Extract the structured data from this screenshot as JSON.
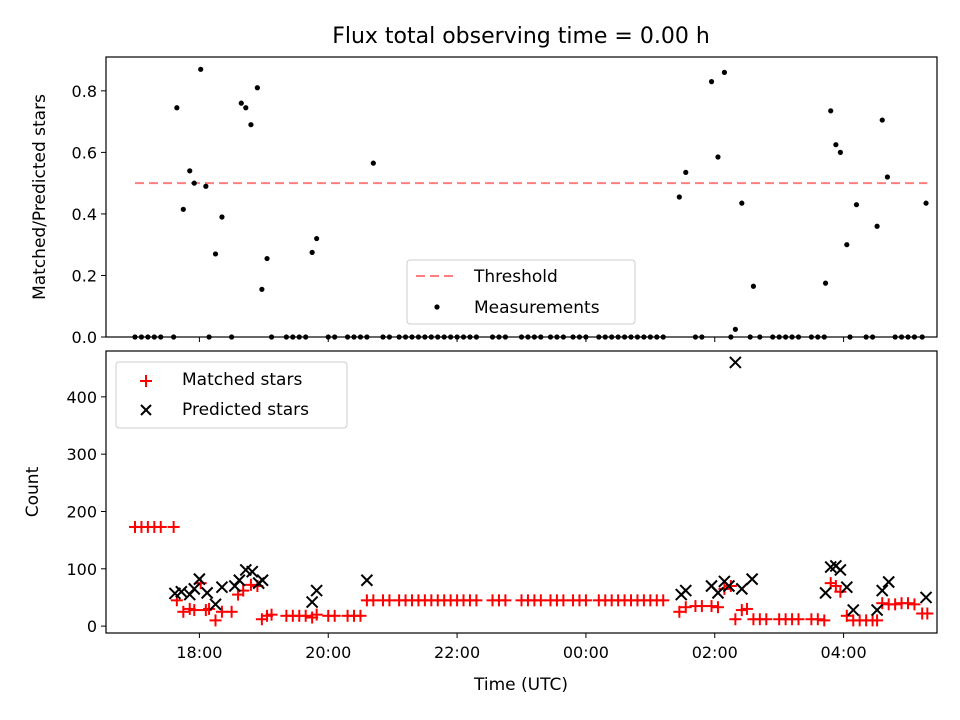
{
  "title": "Flux total observing time = 0.00 h",
  "colors": {
    "threshold": "#ff7f7f",
    "measurements": "#000000",
    "matched": "#ff0000",
    "predicted": "#000000",
    "axes": "#000000",
    "background": "#ffffff"
  },
  "chart_data": [
    {
      "type": "scatter",
      "title": "Flux total observing time = 0.00 h",
      "xlabel": "",
      "ylabel": "Matched/Predicted stars",
      "xlim": [
        16.55,
        29.45
      ],
      "ylim": [
        0,
        0.91
      ],
      "x_ticks": [
        18,
        20,
        22,
        24,
        26,
        28
      ],
      "x_tick_labels": [
        "18:00",
        "20:00",
        "22:00",
        "00:00",
        "02:00",
        "04:00"
      ],
      "show_x_tick_labels": false,
      "yticks": [
        0.0,
        0.2,
        0.4,
        0.6,
        0.8
      ],
      "ytick_labels": [
        "0.0",
        "0.2",
        "0.4",
        "0.6",
        "0.8"
      ],
      "legend": {
        "placement": "lower-center",
        "entries": [
          "Threshold",
          "Measurements"
        ]
      },
      "threshold": {
        "name": "Threshold",
        "y": 0.5,
        "x": [
          17.0,
          29.3
        ],
        "style": "dashed"
      },
      "series": [
        {
          "name": "Measurements",
          "marker": "dot",
          "points": [
            [
              17.0,
              0
            ],
            [
              17.1,
              0
            ],
            [
              17.2,
              0
            ],
            [
              17.3,
              0
            ],
            [
              17.4,
              0
            ],
            [
              17.6,
              0
            ],
            [
              17.65,
              0.745
            ],
            [
              17.75,
              0.415
            ],
            [
              17.85,
              0.54
            ],
            [
              17.92,
              0.5
            ],
            [
              18.02,
              0.87
            ],
            [
              18.1,
              0.49
            ],
            [
              18.15,
              0
            ],
            [
              18.25,
              0.27
            ],
            [
              18.35,
              0.39
            ],
            [
              18.5,
              0
            ],
            [
              18.65,
              0.76
            ],
            [
              18.72,
              0.745
            ],
            [
              18.8,
              0.69
            ],
            [
              18.9,
              0.81
            ],
            [
              18.97,
              0.155
            ],
            [
              19.05,
              0.255
            ],
            [
              19.12,
              0
            ],
            [
              19.35,
              0
            ],
            [
              19.45,
              0
            ],
            [
              19.55,
              0
            ],
            [
              19.65,
              0
            ],
            [
              19.75,
              0.275
            ],
            [
              19.82,
              0.32
            ],
            [
              20.0,
              0
            ],
            [
              20.1,
              0
            ],
            [
              20.3,
              0
            ],
            [
              20.4,
              0
            ],
            [
              20.5,
              0
            ],
            [
              20.6,
              0
            ],
            [
              20.7,
              0.565
            ],
            [
              20.85,
              0
            ],
            [
              20.95,
              0
            ],
            [
              21.1,
              0
            ],
            [
              21.2,
              0
            ],
            [
              21.3,
              0
            ],
            [
              21.4,
              0
            ],
            [
              21.5,
              0
            ],
            [
              21.6,
              0
            ],
            [
              21.7,
              0
            ],
            [
              21.8,
              0
            ],
            [
              21.9,
              0
            ],
            [
              22.0,
              0
            ],
            [
              22.1,
              0
            ],
            [
              22.2,
              0
            ],
            [
              22.3,
              0
            ],
            [
              22.55,
              0
            ],
            [
              22.65,
              0
            ],
            [
              22.75,
              0
            ],
            [
              23.0,
              0
            ],
            [
              23.1,
              0
            ],
            [
              23.2,
              0
            ],
            [
              23.3,
              0
            ],
            [
              23.45,
              0
            ],
            [
              23.55,
              0
            ],
            [
              23.65,
              0
            ],
            [
              23.8,
              0
            ],
            [
              23.9,
              0
            ],
            [
              24.0,
              0
            ],
            [
              24.2,
              0
            ],
            [
              24.3,
              0
            ],
            [
              24.4,
              0
            ],
            [
              24.5,
              0
            ],
            [
              24.6,
              0
            ],
            [
              24.7,
              0
            ],
            [
              24.8,
              0
            ],
            [
              24.9,
              0
            ],
            [
              25.0,
              0
            ],
            [
              25.1,
              0
            ],
            [
              25.2,
              0
            ],
            [
              25.45,
              0.455
            ],
            [
              25.55,
              0.535
            ],
            [
              25.7,
              0
            ],
            [
              25.8,
              0
            ],
            [
              25.95,
              0.83
            ],
            [
              26.05,
              0.585
            ],
            [
              26.15,
              0.86
            ],
            [
              26.25,
              0
            ],
            [
              26.32,
              0.025
            ],
            [
              26.42,
              0.435
            ],
            [
              26.55,
              0
            ],
            [
              26.6,
              0.165
            ],
            [
              26.7,
              0
            ],
            [
              26.9,
              0
            ],
            [
              27.0,
              0
            ],
            [
              27.1,
              0
            ],
            [
              27.2,
              0
            ],
            [
              27.3,
              0
            ],
            [
              27.5,
              0
            ],
            [
              27.6,
              0
            ],
            [
              27.7,
              0
            ],
            [
              27.72,
              0.175
            ],
            [
              27.8,
              0.735
            ],
            [
              27.88,
              0.625
            ],
            [
              27.95,
              0.6
            ],
            [
              28.05,
              0.3
            ],
            [
              28.1,
              0
            ],
            [
              28.2,
              0.43
            ],
            [
              28.35,
              0
            ],
            [
              28.45,
              0
            ],
            [
              28.52,
              0.36
            ],
            [
              28.6,
              0.705
            ],
            [
              28.68,
              0.52
            ],
            [
              28.8,
              0
            ],
            [
              28.9,
              0
            ],
            [
              29.0,
              0
            ],
            [
              29.1,
              0
            ],
            [
              29.22,
              0
            ],
            [
              29.28,
              0.435
            ]
          ]
        }
      ]
    },
    {
      "type": "scatter",
      "title": "",
      "xlabel": "Time (UTC)",
      "ylabel": "Count",
      "xlim": [
        16.55,
        29.45
      ],
      "ylim": [
        -12,
        480
      ],
      "x_ticks": [
        18,
        20,
        22,
        24,
        26,
        28
      ],
      "x_tick_labels": [
        "18:00",
        "20:00",
        "22:00",
        "00:00",
        "02:00",
        "04:00"
      ],
      "yticks": [
        0,
        100,
        200,
        300,
        400
      ],
      "ytick_labels": [
        "0",
        "100",
        "200",
        "300",
        "400"
      ],
      "legend": {
        "placement": "upper-left",
        "entries": [
          "Matched stars",
          "Predicted stars"
        ]
      },
      "series": [
        {
          "name": "Matched stars",
          "marker": "plus",
          "points": [
            [
              17.0,
              173
            ],
            [
              17.1,
              173
            ],
            [
              17.2,
              173
            ],
            [
              17.3,
              173
            ],
            [
              17.4,
              173
            ],
            [
              17.6,
              173
            ],
            [
              17.65,
              45
            ],
            [
              17.75,
              25
            ],
            [
              17.85,
              30
            ],
            [
              17.92,
              28
            ],
            [
              18.02,
              75
            ],
            [
              18.1,
              28
            ],
            [
              18.15,
              30
            ],
            [
              18.25,
              10
            ],
            [
              18.35,
              25
            ],
            [
              18.5,
              25
            ],
            [
              18.6,
              55
            ],
            [
              18.68,
              62
            ],
            [
              18.8,
              72
            ],
            [
              18.9,
              70
            ],
            [
              18.97,
              12
            ],
            [
              19.05,
              18
            ],
            [
              19.12,
              20
            ],
            [
              19.35,
              18
            ],
            [
              19.45,
              18
            ],
            [
              19.55,
              18
            ],
            [
              19.65,
              18
            ],
            [
              19.75,
              15
            ],
            [
              19.82,
              20
            ],
            [
              20.0,
              18
            ],
            [
              20.1,
              18
            ],
            [
              20.3,
              18
            ],
            [
              20.4,
              18
            ],
            [
              20.5,
              18
            ],
            [
              20.6,
              45
            ],
            [
              20.7,
              45
            ],
            [
              20.85,
              45
            ],
            [
              20.95,
              45
            ],
            [
              21.1,
              45
            ],
            [
              21.2,
              45
            ],
            [
              21.3,
              45
            ],
            [
              21.4,
              45
            ],
            [
              21.5,
              45
            ],
            [
              21.6,
              45
            ],
            [
              21.7,
              45
            ],
            [
              21.8,
              45
            ],
            [
              21.9,
              45
            ],
            [
              22.0,
              45
            ],
            [
              22.1,
              45
            ],
            [
              22.2,
              45
            ],
            [
              22.3,
              45
            ],
            [
              22.55,
              45
            ],
            [
              22.65,
              45
            ],
            [
              22.75,
              45
            ],
            [
              23.0,
              45
            ],
            [
              23.1,
              45
            ],
            [
              23.2,
              45
            ],
            [
              23.3,
              45
            ],
            [
              23.45,
              45
            ],
            [
              23.55,
              45
            ],
            [
              23.65,
              45
            ],
            [
              23.8,
              45
            ],
            [
              23.9,
              45
            ],
            [
              24.0,
              45
            ],
            [
              24.2,
              45
            ],
            [
              24.3,
              45
            ],
            [
              24.4,
              45
            ],
            [
              24.5,
              45
            ],
            [
              24.6,
              45
            ],
            [
              24.7,
              45
            ],
            [
              24.8,
              45
            ],
            [
              24.9,
              45
            ],
            [
              25.0,
              45
            ],
            [
              25.1,
              45
            ],
            [
              25.2,
              45
            ],
            [
              25.45,
              25
            ],
            [
              25.55,
              33
            ],
            [
              25.7,
              35
            ],
            [
              25.8,
              35
            ],
            [
              25.95,
              35
            ],
            [
              26.05,
              33
            ],
            [
              26.15,
              65
            ],
            [
              26.25,
              70
            ],
            [
              26.32,
              12
            ],
            [
              26.42,
              28
            ],
            [
              26.5,
              30
            ],
            [
              26.6,
              12
            ],
            [
              26.7,
              12
            ],
            [
              26.8,
              12
            ],
            [
              27.0,
              12
            ],
            [
              27.1,
              12
            ],
            [
              27.2,
              12
            ],
            [
              27.3,
              12
            ],
            [
              27.5,
              12
            ],
            [
              27.6,
              12
            ],
            [
              27.7,
              10
            ],
            [
              27.8,
              75
            ],
            [
              27.88,
              70
            ],
            [
              27.95,
              60
            ],
            [
              28.05,
              18
            ],
            [
              28.15,
              10
            ],
            [
              28.25,
              10
            ],
            [
              28.35,
              10
            ],
            [
              28.45,
              10
            ],
            [
              28.52,
              10
            ],
            [
              28.6,
              40
            ],
            [
              28.7,
              38
            ],
            [
              28.8,
              38
            ],
            [
              28.9,
              40
            ],
            [
              29.0,
              40
            ],
            [
              29.1,
              38
            ],
            [
              29.22,
              22
            ],
            [
              29.3,
              22
            ]
          ]
        },
        {
          "name": "Predicted stars",
          "marker": "x",
          "points": [
            [
              17.62,
              57
            ],
            [
              17.72,
              60
            ],
            [
              17.85,
              55
            ],
            [
              17.92,
              65
            ],
            [
              18.0,
              82
            ],
            [
              18.12,
              58
            ],
            [
              18.25,
              38
            ],
            [
              18.35,
              68
            ],
            [
              18.55,
              70
            ],
            [
              18.62,
              80
            ],
            [
              18.72,
              98
            ],
            [
              18.82,
              95
            ],
            [
              18.92,
              75
            ],
            [
              18.98,
              80
            ],
            [
              19.75,
              42
            ],
            [
              19.82,
              62
            ],
            [
              20.6,
              80
            ],
            [
              25.48,
              55
            ],
            [
              25.55,
              62
            ],
            [
              25.95,
              70
            ],
            [
              26.05,
              58
            ],
            [
              26.15,
              78
            ],
            [
              26.22,
              70
            ],
            [
              26.32,
              460
            ],
            [
              26.42,
              65
            ],
            [
              26.58,
              82
            ],
            [
              27.72,
              58
            ],
            [
              27.8,
              103
            ],
            [
              27.88,
              105
            ],
            [
              27.95,
              98
            ],
            [
              28.05,
              68
            ],
            [
              28.15,
              28
            ],
            [
              28.52,
              28
            ],
            [
              28.6,
              62
            ],
            [
              28.7,
              77
            ],
            [
              29.28,
              50
            ]
          ]
        }
      ]
    }
  ]
}
